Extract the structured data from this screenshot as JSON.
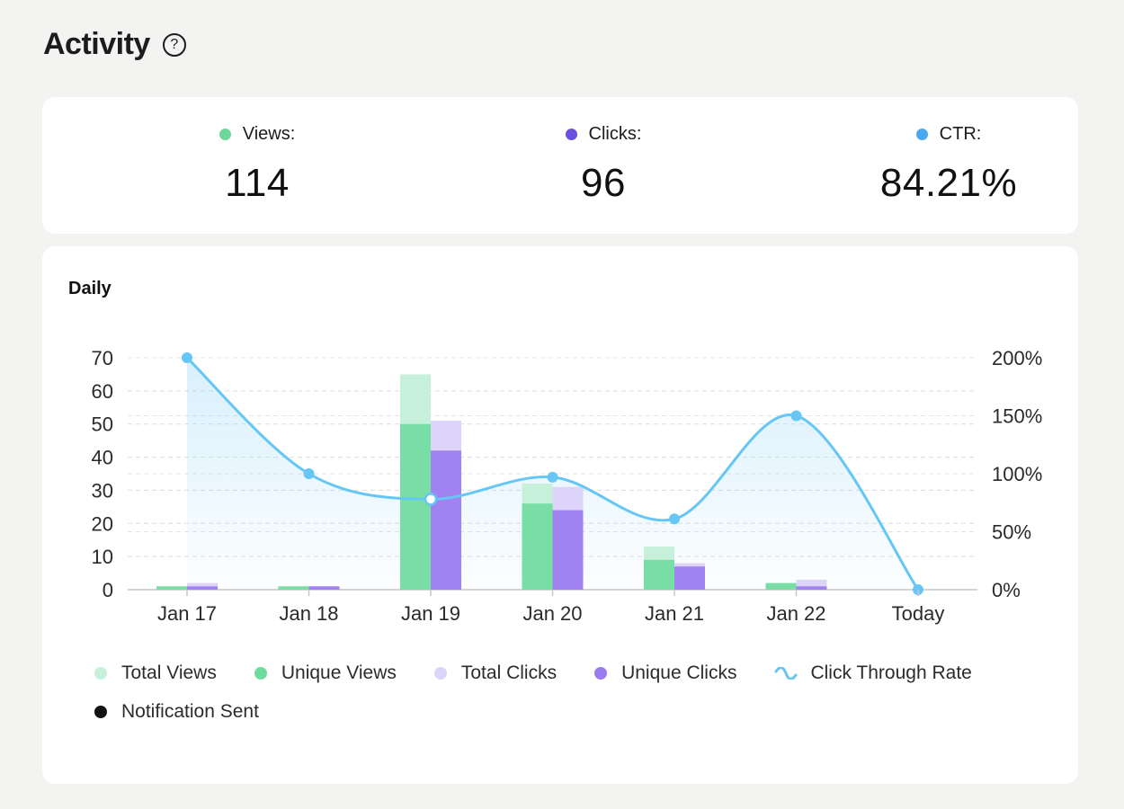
{
  "page": {
    "title": "Activity"
  },
  "summary": [
    {
      "label": "Views:",
      "value": "114",
      "color": "#6fd69c"
    },
    {
      "label": "Clicks:",
      "value": "96",
      "color": "#6a4fe0"
    },
    {
      "label": "CTR:",
      "value": "84.21%",
      "color": "#4aa8ee"
    }
  ],
  "chart_title": "Daily",
  "legend": [
    {
      "label": "Total Views",
      "color": "#c7f0da",
      "shape": "dot"
    },
    {
      "label": "Unique Views",
      "color": "#6fdc9e",
      "shape": "dot"
    },
    {
      "label": "Total Clicks",
      "color": "#ddd4fa",
      "shape": "dot"
    },
    {
      "label": "Unique Clicks",
      "color": "#9a7cf0",
      "shape": "dot"
    },
    {
      "label": "Click Through Rate",
      "color": "#66c6f5",
      "shape": "wave"
    },
    {
      "label": "Notification Sent",
      "color": "#111111",
      "shape": "dot"
    }
  ],
  "chart_data": {
    "type": "bar",
    "title": "Daily",
    "categories": [
      "Jan 17",
      "Jan 18",
      "Jan 19",
      "Jan 20",
      "Jan 21",
      "Jan 22",
      "Today"
    ],
    "series": [
      {
        "name": "Total Views",
        "values": [
          1,
          1,
          65,
          32,
          13,
          2,
          0
        ],
        "color": "#c7f0da"
      },
      {
        "name": "Unique Views",
        "values": [
          1,
          1,
          50,
          26,
          9,
          2,
          0
        ],
        "color": "#6fdc9e"
      },
      {
        "name": "Total Clicks",
        "values": [
          2,
          1,
          51,
          31,
          8,
          3,
          0
        ],
        "color": "#ddd4fa"
      },
      {
        "name": "Unique Clicks",
        "values": [
          1,
          1,
          42,
          24,
          7,
          1,
          0
        ],
        "color": "#9a7cf0"
      },
      {
        "name": "Click Through Rate",
        "type": "line",
        "axis": "right",
        "unit": "%",
        "values": [
          200,
          100,
          78,
          97,
          61,
          150,
          0
        ],
        "color": "#66c6f5"
      }
    ],
    "y_left": {
      "range": [
        0,
        70
      ],
      "ticks": [
        0,
        10,
        20,
        30,
        40,
        50,
        60,
        70
      ]
    },
    "y_right": {
      "range": [
        0,
        200
      ],
      "ticks": [
        "0%",
        "50%",
        "100%",
        "150%",
        "200%"
      ],
      "tick_values": [
        0,
        50,
        100,
        150,
        200
      ]
    },
    "grid": true,
    "legend_position": "bottom"
  }
}
